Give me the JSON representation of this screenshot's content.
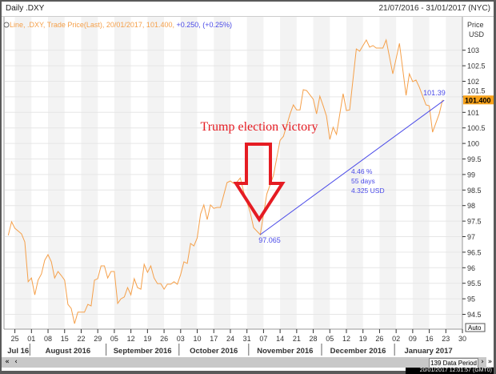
{
  "header": {
    "title": "Daily .DXY",
    "date_range": "21/07/2016 - 31/01/2017 (NYC)"
  },
  "legend": {
    "text_main": "Line, .DXY, Trade Price(Last), 20/01/2017, 101.400,",
    "text_change": "+0.250, (+0.25%)"
  },
  "axis": {
    "price_label": "Price",
    "unit_label": "USD",
    "auto_label": "Auto",
    "last_price_badge": "101.400"
  },
  "colors": {
    "line": "#f5a04a",
    "trend": "#4a4ae8",
    "arrow": "#e51c23",
    "badge": "#f7a21b",
    "band": "#f3f3f3",
    "grid": "#e6e6e6"
  },
  "annotations": {
    "headline": "Trump election victory",
    "low_label": "97.065",
    "high_label": "101.39",
    "stats": [
      "4.46 %",
      "55 days",
      "4.325 USD"
    ]
  },
  "footer": {
    "period_button": "139 Data Period",
    "status": "20/01/2017 12:01:57 (GMT0)",
    "first_icon": "«",
    "prev_icon": "‹",
    "next_icon": "›",
    "last_icon": "»"
  },
  "chart_data": {
    "type": "line",
    "title": "Daily .DXY",
    "ylabel": "Price USD",
    "ylim": [
      94.2,
      103.6
    ],
    "xlim": [
      "2016-07-21",
      "2017-01-31"
    ],
    "grid": true,
    "y_ticks": [
      94.5,
      95,
      95.5,
      96,
      96.5,
      97,
      97.5,
      98,
      98.5,
      99,
      99.5,
      100,
      100.5,
      101,
      101.5,
      102,
      102.5,
      103
    ],
    "x_ticks": [
      "25",
      "01",
      "08",
      "15",
      "22",
      "29",
      "05",
      "12",
      "19",
      "26",
      "03",
      "10",
      "17",
      "24",
      "31",
      "07",
      "14",
      "21",
      "28",
      "05",
      "12",
      "19",
      "26",
      "02",
      "09",
      "16",
      "23",
      "30"
    ],
    "x_tick_dates": [
      "2016-07-25",
      "2016-08-01",
      "2016-08-08",
      "2016-08-15",
      "2016-08-22",
      "2016-08-29",
      "2016-09-05",
      "2016-09-12",
      "2016-09-19",
      "2016-09-26",
      "2016-10-03",
      "2016-10-10",
      "2016-10-17",
      "2016-10-24",
      "2016-10-31",
      "2016-11-07",
      "2016-11-14",
      "2016-11-21",
      "2016-11-28",
      "2016-12-05",
      "2016-12-12",
      "2016-12-19",
      "2016-12-26",
      "2017-01-02",
      "2017-01-09",
      "2017-01-16",
      "2017-01-23",
      "2017-01-30"
    ],
    "months": [
      {
        "label": "Jul 16",
        "start": "2016-07-21",
        "end": "2016-07-29"
      },
      {
        "label": "August 2016",
        "start": "2016-08-01",
        "end": "2016-08-31"
      },
      {
        "label": "September 2016",
        "start": "2016-09-01",
        "end": "2016-09-30"
      },
      {
        "label": "October 2016",
        "start": "2016-10-03",
        "end": "2016-10-31"
      },
      {
        "label": "November 2016",
        "start": "2016-11-01",
        "end": "2016-11-30"
      },
      {
        "label": "December 2016",
        "start": "2016-12-01",
        "end": "2016-12-30"
      },
      {
        "label": "January 2017",
        "start": "2017-01-02",
        "end": "2017-01-31"
      }
    ],
    "series": [
      {
        "x": [
          "2016-07-21",
          "2016-07-22",
          "2016-07-25",
          "2016-07-27",
          "2016-07-28",
          "2016-07-29",
          "2016-08-01",
          "2016-08-02",
          "2016-08-03",
          "2016-08-04",
          "2016-08-05",
          "2016-08-08",
          "2016-08-09",
          "2016-08-10",
          "2016-08-11",
          "2016-08-12",
          "2016-08-15",
          "2016-08-16",
          "2016-08-17",
          "2016-08-18",
          "2016-08-19",
          "2016-08-22",
          "2016-08-23",
          "2016-08-24",
          "2016-08-25",
          "2016-08-26",
          "2016-08-29",
          "2016-08-30",
          "2016-08-31",
          "2016-09-01",
          "2016-09-02",
          "2016-09-05",
          "2016-09-06",
          "2016-09-07",
          "2016-09-08",
          "2016-09-09",
          "2016-09-12",
          "2016-09-13",
          "2016-09-14",
          "2016-09-15",
          "2016-09-16",
          "2016-09-19",
          "2016-09-20",
          "2016-09-21",
          "2016-09-22",
          "2016-09-23",
          "2016-09-26",
          "2016-09-27",
          "2016-09-28",
          "2016-09-29",
          "2016-09-30",
          "2016-10-03",
          "2016-10-04",
          "2016-10-05",
          "2016-10-06",
          "2016-10-07",
          "2016-10-10",
          "2016-10-11",
          "2016-10-12",
          "2016-10-13",
          "2016-10-14",
          "2016-10-17",
          "2016-10-18",
          "2016-10-19",
          "2016-10-21",
          "2016-10-24",
          "2016-10-25",
          "2016-10-26",
          "2016-10-27",
          "2016-10-28",
          "2016-11-01",
          "2016-11-02",
          "2016-11-04",
          "2016-11-08",
          "2016-11-10",
          "2016-11-14",
          "2016-11-15",
          "2016-11-17",
          "2016-11-18",
          "2016-11-21",
          "2016-11-22",
          "2016-11-23",
          "2016-11-24",
          "2016-11-28",
          "2016-11-29",
          "2016-11-30",
          "2016-12-01",
          "2016-12-02",
          "2016-12-05",
          "2016-12-06",
          "2016-12-07",
          "2016-12-09",
          "2016-12-12",
          "2016-12-13",
          "2016-12-15",
          "2016-12-16",
          "2016-12-20",
          "2016-12-21",
          "2016-12-22",
          "2016-12-23",
          "2016-12-27",
          "2016-12-28",
          "2016-12-30",
          "2017-01-03",
          "2017-01-05",
          "2017-01-06",
          "2017-01-09",
          "2017-01-10",
          "2017-01-11",
          "2017-01-13",
          "2017-01-16",
          "2017-01-17",
          "2017-01-19",
          "2017-01-20"
        ],
        "y": [
          97.04,
          97.48,
          97.27,
          97.09,
          96.83,
          95.55,
          95.67,
          95.13,
          95.6,
          95.8,
          96.24,
          96.42,
          96.19,
          95.67,
          95.88,
          95.75,
          95.6,
          94.82,
          94.69,
          94.2,
          94.57,
          94.57,
          94.57,
          94.82,
          94.77,
          95.6,
          95.65,
          96.06,
          96.06,
          95.67,
          95.88,
          95.88,
          94.85,
          95.0,
          95.06,
          95.36,
          95.13,
          95.65,
          95.36,
          95.31,
          96.11,
          95.85,
          96.06,
          95.67,
          95.49,
          95.49,
          95.31,
          95.47,
          95.47,
          95.55,
          95.47,
          95.78,
          96.19,
          96.14,
          96.78,
          96.7,
          96.96,
          97.73,
          98.02,
          97.55,
          98.02,
          97.91,
          97.94,
          97.94,
          98.74,
          98.79,
          98.71,
          98.76,
          98.89,
          98.45,
          97.78,
          97.29,
          97.065,
          98.37,
          98.97,
          100.1,
          100.23,
          100.95,
          101.24,
          101.08,
          101.08,
          101.73,
          101.7,
          101.42,
          100.95,
          101.52,
          101.21,
          100.88,
          100.13,
          100.52,
          100.29,
          101.6,
          101.06,
          101.08,
          103.04,
          102.97,
          103.33,
          103.1,
          103.15,
          103.07,
          103.07,
          103.33,
          102.24,
          103.22,
          101.55,
          102.24,
          101.99,
          102.04,
          101.81,
          101.24,
          101.21,
          100.36,
          100.95,
          101.4
        ]
      }
    ],
    "trendline": {
      "from": [
        "2016-11-04",
        97.065
      ],
      "to": [
        "2017-01-20",
        101.39
      ]
    }
  }
}
